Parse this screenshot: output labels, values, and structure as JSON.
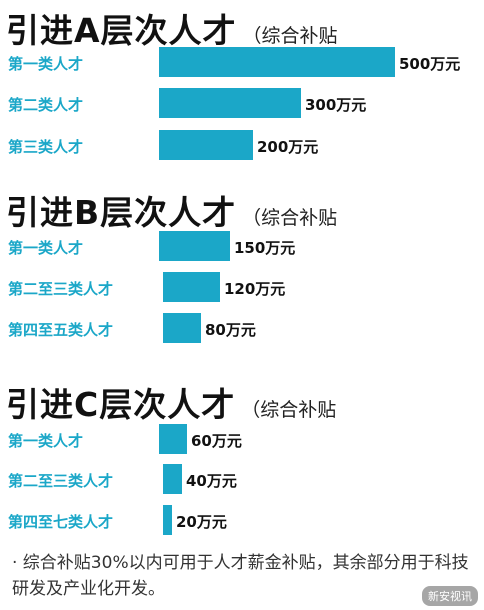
{
  "chart_data": [
    {
      "type": "bar",
      "title": "引进A层次人才",
      "subtitle": "（综合补贴",
      "categories": [
        "第一类人才",
        "第二类人才",
        "第三类人才"
      ],
      "values": [
        500,
        300,
        200
      ],
      "value_labels": [
        "500万元",
        "300万元",
        "200万元"
      ],
      "unit": "万元"
    },
    {
      "type": "bar",
      "title": "引进B层次人才",
      "subtitle": "（综合补贴",
      "categories": [
        "第一类人才",
        "第二至三类人才",
        "第四至五类人才"
      ],
      "values": [
        150,
        120,
        80
      ],
      "value_labels": [
        "150万元",
        "120万元",
        "80万元"
      ],
      "unit": "万元"
    },
    {
      "type": "bar",
      "title": "引进C层次人才",
      "subtitle": "（综合补贴",
      "categories": [
        "第一类人才",
        "第二至三类人才",
        "第四至七类人才"
      ],
      "values": [
        60,
        40,
        20
      ],
      "value_labels": [
        "60万元",
        "40万元",
        "20万元"
      ],
      "unit": "万元"
    }
  ],
  "note": "· 综合补贴30%以内可用于人才薪金补贴，其余部分用于科技研发及产业化开发。",
  "watermark": "新安视讯",
  "colors": {
    "bar": "#1ba7c8",
    "category_text": "#1ba7c8"
  }
}
